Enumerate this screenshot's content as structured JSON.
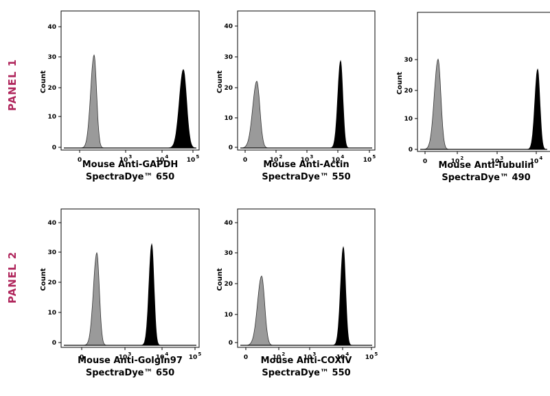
{
  "panel_labels": [
    "PANEL 1",
    "PANEL 2"
  ],
  "colors": {
    "panel_label": "#b0265c",
    "control_fill": "#9a9a9a",
    "stained_fill": "#000000"
  },
  "chart_data": [
    {
      "type": "area",
      "panel": "PANEL 1",
      "xlabel": "Mouse Anti-GAPDH",
      "xlabel2": "SpectraDye™ 650",
      "ylabel": "Count",
      "ylim": [
        0,
        46
      ],
      "xscale": "biexponential",
      "x_ticks": [
        {
          "base": "0",
          "exp": ""
        },
        {
          "base": "10",
          "exp": "3"
        },
        {
          "base": "10",
          "exp": "4"
        },
        {
          "base": "10",
          "exp": "5"
        }
      ],
      "y_ticks": [
        0,
        10,
        20,
        30,
        40
      ],
      "series": [
        {
          "role": "control",
          "peak_x": "~10^2",
          "peak_count": 32
        },
        {
          "role": "stained",
          "peak_x": "~7×10^4",
          "peak_count": 27
        }
      ]
    },
    {
      "type": "area",
      "panel": "PANEL 1",
      "xlabel": "Mouse Anti-Actin",
      "xlabel2": "SpectraDye™ 550",
      "ylabel": "Count",
      "ylim": [
        0,
        46
      ],
      "xscale": "biexponential",
      "x_ticks": [
        {
          "base": "0",
          "exp": ""
        },
        {
          "base": "10",
          "exp": "2"
        },
        {
          "base": "10",
          "exp": "3"
        },
        {
          "base": "10",
          "exp": "4"
        },
        {
          "base": "10",
          "exp": "5"
        }
      ],
      "y_ticks": [
        0,
        10,
        20,
        30,
        40
      ],
      "series": [
        {
          "role": "control",
          "peak_x": "~50",
          "peak_count": 23
        },
        {
          "role": "stained",
          "peak_x": "~1.2×10^4",
          "peak_count": 30
        }
      ]
    },
    {
      "type": "area",
      "panel": "PANEL 1",
      "xlabel": "Mouse Anti-Tubulin",
      "xlabel2": "SpectraDye™ 490",
      "ylabel": "Count",
      "ylim": [
        0,
        40
      ],
      "xscale": "biexponential",
      "x_ticks": [
        {
          "base": "0",
          "exp": ""
        },
        {
          "base": "10",
          "exp": "2"
        },
        {
          "base": "10",
          "exp": "3"
        },
        {
          "base": "10",
          "exp": "4"
        }
      ],
      "y_ticks": [
        0,
        10,
        20,
        30
      ],
      "series": [
        {
          "role": "control",
          "peak_x": "~50",
          "peak_count": 27
        },
        {
          "role": "stained",
          "peak_x": "~8×10^3",
          "peak_count": 24
        }
      ]
    },
    {
      "type": "area",
      "panel": "PANEL 2",
      "xlabel": "Mouse Anti-Golgin97",
      "xlabel2": "SpectraDye™ 650",
      "ylabel": "Count",
      "ylim": [
        0,
        46
      ],
      "xscale": "biexponential",
      "x_ticks": [
        {
          "base": "0",
          "exp": ""
        },
        {
          "base": "10",
          "exp": "3"
        },
        {
          "base": "10",
          "exp": "4"
        },
        {
          "base": "10",
          "exp": "5"
        }
      ],
      "y_ticks": [
        0,
        10,
        20,
        30,
        40
      ],
      "series": [
        {
          "role": "control",
          "peak_x": "~10^2",
          "peak_count": 32
        },
        {
          "role": "stained",
          "peak_x": "~6×10^3",
          "peak_count": 35
        }
      ]
    },
    {
      "type": "area",
      "panel": "PANEL 2",
      "xlabel": "Mouse Anti-COXIV",
      "xlabel2": "SpectraDye™ 550",
      "ylabel": "Count",
      "ylim": [
        0,
        46
      ],
      "xscale": "biexponential",
      "x_ticks": [
        {
          "base": "0",
          "exp": ""
        },
        {
          "base": "10",
          "exp": "2"
        },
        {
          "base": "10",
          "exp": "3"
        },
        {
          "base": "10",
          "exp": "4"
        },
        {
          "base": "10",
          "exp": "5"
        }
      ],
      "y_ticks": [
        0,
        10,
        20,
        30,
        40
      ],
      "series": [
        {
          "role": "control",
          "peak_x": "~50",
          "peak_count": 24
        },
        {
          "role": "stained",
          "peak_x": "~1.2×10^4",
          "peak_count": 34
        }
      ]
    }
  ]
}
